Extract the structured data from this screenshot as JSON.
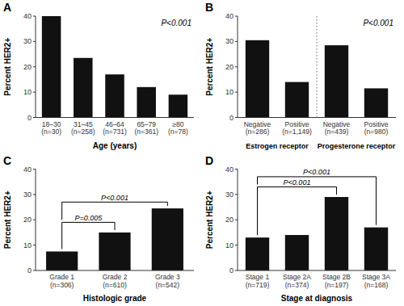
{
  "chart_data": [
    {
      "type": "bar",
      "title": "A",
      "categories": [
        "18–30\n(n=30)",
        "31–45\n(n=258)",
        "46–64\n(n=731)",
        "65–79\n(n=361)",
        "≥80\n(n=78)"
      ],
      "values": [
        40,
        23.5,
        17,
        12,
        9
      ],
      "color": "#111111",
      "xlabel": "Age (years)",
      "ylabel": "Percent HER2+",
      "annotation": "P<0.001",
      "ylim": [
        0,
        40
      ],
      "yticks": [
        0,
        10,
        20,
        30,
        40
      ],
      "grid": false
    },
    {
      "type": "bar",
      "title": "B",
      "categories": [
        "Negative\n(n=286)",
        "Positive\n(n=1,149)",
        "Negative\n(n=439)",
        "Positive\n(n=980)"
      ],
      "values": [
        30.5,
        14,
        28.5,
        11.5
      ],
      "color": "#111111",
      "ylabel": "Percent HER2+",
      "groups": [
        {
          "label": "Estrogen receptor",
          "categories": [
            "Negative\n(n=286)",
            "Positive\n(n=1,149)"
          ]
        },
        {
          "label": "Progesterone receptor",
          "categories": [
            "Negative\n(n=439)",
            "Positive\n(n=980)"
          ]
        }
      ],
      "annotation": "P<0.001",
      "ylim": [
        0,
        40
      ],
      "yticks": [
        0,
        10,
        20,
        30,
        40
      ],
      "grid": false
    },
    {
      "type": "bar",
      "title": "C",
      "categories": [
        "Grade 1\n(n=306)",
        "Grade 2\n(n=610)",
        "Grade 3\n(n=542)"
      ],
      "values": [
        7.5,
        15,
        24.5
      ],
      "color": "#111111",
      "xlabel": "Histologic grade",
      "ylabel": "Percent HER2+",
      "brackets": [
        {
          "text": "P=0.005",
          "between": [
            "Grade 1\n(n=306)",
            "Grade 2\n(n=610)"
          ],
          "y": 19
        },
        {
          "text": "P<0.001",
          "between": [
            "Grade 1\n(n=306)",
            "Grade 3\n(n=542)"
          ],
          "y": 27
        }
      ],
      "ylim": [
        0,
        40
      ],
      "yticks": [
        0,
        10,
        20,
        30,
        40
      ],
      "grid": false
    },
    {
      "type": "bar",
      "title": "D",
      "categories": [
        "Stage 1\n(n=719)",
        "Stage 2A\n(n=374)",
        "Stage 2B\n(n=197)",
        "Stage 3A\n(n=168)"
      ],
      "values": [
        13,
        14,
        29,
        17
      ],
      "color": "#111111",
      "xlabel": "Stage at diagnosis",
      "ylabel": "Percent HER2+",
      "brackets": [
        {
          "text": "P<0.001",
          "between": [
            "Stage 1\n(n=719)",
            "Stage 2B\n(n=197)"
          ],
          "y": 33
        },
        {
          "text": "P<0.001",
          "between": [
            "Stage 1\n(n=719)",
            "Stage 3A\n(n=168)"
          ],
          "y": 37
        }
      ],
      "ylim": [
        0,
        40
      ],
      "yticks": [
        0,
        10,
        20,
        30,
        40
      ],
      "grid": false
    }
  ]
}
